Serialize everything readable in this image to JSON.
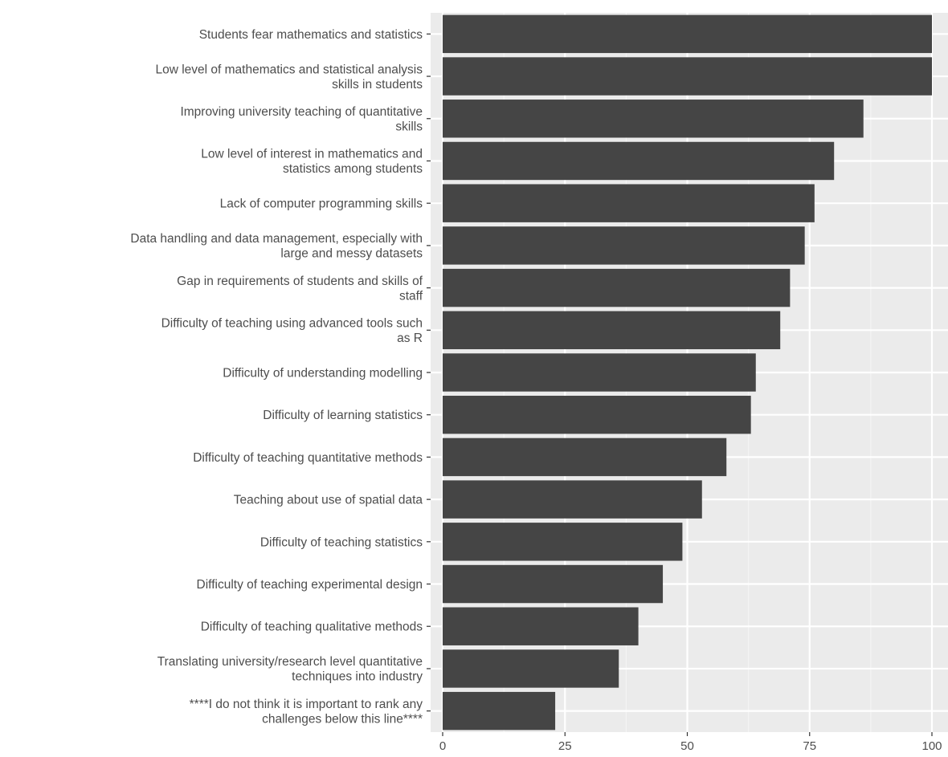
{
  "chart_data": {
    "type": "bar",
    "orientation": "horizontal",
    "title": "",
    "xlabel": "",
    "ylabel": "",
    "xlim": [
      0,
      101
    ],
    "x_ticks": [
      "0",
      "25",
      "50",
      "75",
      "100"
    ],
    "x_tick_values": [
      0,
      25,
      50,
      75,
      100
    ],
    "grid": true,
    "legend": "none",
    "colors": {
      "bar": "#454545",
      "panel": "#ebebeb",
      "grid_major": "#ffffff",
      "grid_minor": "#f4f4f4",
      "text": "#4d4d4d"
    },
    "categories": [
      [
        "Students fear mathematics and statistics"
      ],
      [
        "Low level of mathematics and statistical analysis",
        "skills in students"
      ],
      [
        "Improving university teaching of quantitative",
        "skills"
      ],
      [
        "Low level of interest in mathematics and",
        "statistics among students"
      ],
      [
        "Lack of computer programming skills"
      ],
      [
        "Data handling and data management, especially with",
        "large and messy datasets"
      ],
      [
        "Gap in requirements of students and skills of",
        "staff"
      ],
      [
        "Difficulty of teaching using advanced tools such",
        "as R"
      ],
      [
        "Difficulty of understanding modelling"
      ],
      [
        "Difficulty of learning statistics"
      ],
      [
        "Difficulty of teaching quantitative methods"
      ],
      [
        "Teaching about use of spatial data"
      ],
      [
        "Difficulty of teaching statistics"
      ],
      [
        "Difficulty of teaching experimental design"
      ],
      [
        "Difficulty of teaching qualitative methods"
      ],
      [
        "Translating university/research level quantitative",
        "techniques into industry"
      ],
      [
        "****I do not think it is important to rank any",
        "challenges below this line****"
      ]
    ],
    "values": [
      100,
      100,
      86,
      80,
      76,
      74,
      71,
      69,
      64,
      63,
      58,
      53,
      49,
      45,
      40,
      36,
      23
    ]
  }
}
